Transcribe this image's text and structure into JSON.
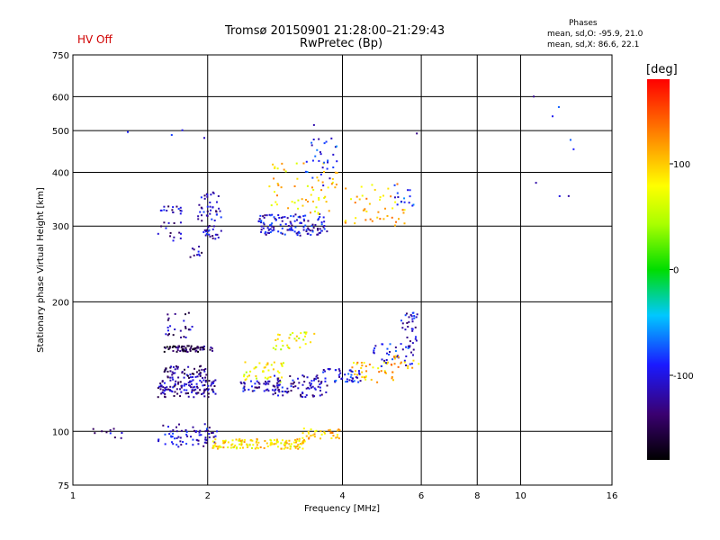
{
  "header": {
    "status": "HV Off",
    "status_color": "#d00000",
    "title_line1": "Tromsø 20150901 21:28:00–21:29:43",
    "title_line2": "RwPretec (Bp)",
    "phases_title": "Phases",
    "phases_line1": "mean, sd,O: -95.9, 21.0",
    "phases_line2": "mean, sd,X:  86.6, 22.1"
  },
  "chart_data": {
    "type": "scatter",
    "xlabel": "Frequency [MHz]",
    "ylabel": "Stationary phase Virtual Height [km]",
    "xscale": "log",
    "yscale": "log",
    "xlim": [
      1,
      16
    ],
    "ylim": [
      75,
      750
    ],
    "x_ticks": [
      1,
      2,
      4,
      6,
      8,
      10,
      16
    ],
    "y_ticks": [
      75,
      100,
      200,
      300,
      400,
      500,
      600,
      750
    ],
    "grid": true,
    "colorbar": {
      "label": "[deg]",
      "range": [
        -180,
        180
      ],
      "ticks": [
        100,
        0,
        -100
      ]
    },
    "clusters": [
      {
        "f": [
          1.55,
          2.1
        ],
        "h": [
          92,
          104
        ],
        "phase": -110,
        "n": 70
      },
      {
        "f": [
          2.05,
          3.3
        ],
        "h": [
          91,
          96
        ],
        "phase": 90,
        "n": 140
      },
      {
        "f": [
          3.2,
          4.0
        ],
        "h": [
          96,
          102
        ],
        "phase": 100,
        "n": 35
      },
      {
        "f": [
          1.1,
          1.3
        ],
        "h": [
          96,
          102
        ],
        "phase": -110,
        "n": 10
      },
      {
        "f": [
          1.55,
          2.1
        ],
        "h": [
          120,
          132
        ],
        "phase": -120,
        "n": 120
      },
      {
        "f": [
          1.6,
          2.0
        ],
        "h": [
          133,
          142
        ],
        "phase": -130,
        "n": 60
      },
      {
        "f": [
          1.6,
          2.05
        ],
        "h": [
          153,
          158
        ],
        "phase": -150,
        "n": 70
      },
      {
        "f": [
          1.6,
          1.85
        ],
        "h": [
          165,
          190
        ],
        "phase": -125,
        "n": 25
      },
      {
        "f": [
          2.35,
          2.9
        ],
        "h": [
          124,
          131
        ],
        "phase": -110,
        "n": 50
      },
      {
        "f": [
          2.4,
          3.0
        ],
        "h": [
          130,
          145
        ],
        "phase": 80,
        "n": 40
      },
      {
        "f": [
          2.8,
          3.7
        ],
        "h": [
          120,
          135
        ],
        "phase": -115,
        "n": 80
      },
      {
        "f": [
          2.8,
          3.5
        ],
        "h": [
          155,
          170
        ],
        "phase": 70,
        "n": 30
      },
      {
        "f": [
          3.6,
          4.4
        ],
        "h": [
          130,
          140
        ],
        "phase": -100,
        "n": 45
      },
      {
        "f": [
          4.2,
          5.2
        ],
        "h": [
          130,
          145
        ],
        "phase": 100,
        "n": 40
      },
      {
        "f": [
          4.6,
          5.8
        ],
        "h": [
          140,
          160
        ],
        "phase": -95,
        "n": 40
      },
      {
        "f": [
          5.4,
          5.9
        ],
        "h": [
          160,
          190
        ],
        "phase": -110,
        "n": 30
      },
      {
        "f": [
          5.1,
          6.0
        ],
        "h": [
          140,
          150
        ],
        "phase": 110,
        "n": 15
      },
      {
        "f": [
          1.55,
          1.75
        ],
        "h": [
          275,
          335
        ],
        "phase": -115,
        "n": 30
      },
      {
        "f": [
          1.9,
          2.15
        ],
        "h": [
          280,
          360
        ],
        "phase": -110,
        "n": 60
      },
      {
        "f": [
          1.8,
          1.95
        ],
        "h": [
          250,
          270
        ],
        "phase": -120,
        "n": 10
      },
      {
        "f": [
          2.6,
          3.7
        ],
        "h": [
          285,
          320
        ],
        "phase": -105,
        "n": 130
      },
      {
        "f": [
          2.7,
          3.9
        ],
        "h": [
          320,
          420
        ],
        "phase": 95,
        "n": 60
      },
      {
        "f": [
          3.3,
          3.9
        ],
        "h": [
          370,
          480
        ],
        "phase": -90,
        "n": 30
      },
      {
        "f": [
          4.0,
          5.6
        ],
        "h": [
          300,
          380
        ],
        "phase": 105,
        "n": 45
      },
      {
        "f": [
          5.2,
          5.8
        ],
        "h": [
          330,
          380
        ],
        "phase": -80,
        "n": 15
      },
      {
        "f": [
          10.3,
          14.5
        ],
        "h": [
          330,
          610
        ],
        "phase": -100,
        "n": 8
      },
      {
        "f": [
          1.2,
          5.9
        ],
        "h": [
          480,
          620
        ],
        "phase": -95,
        "n": 6
      }
    ]
  }
}
